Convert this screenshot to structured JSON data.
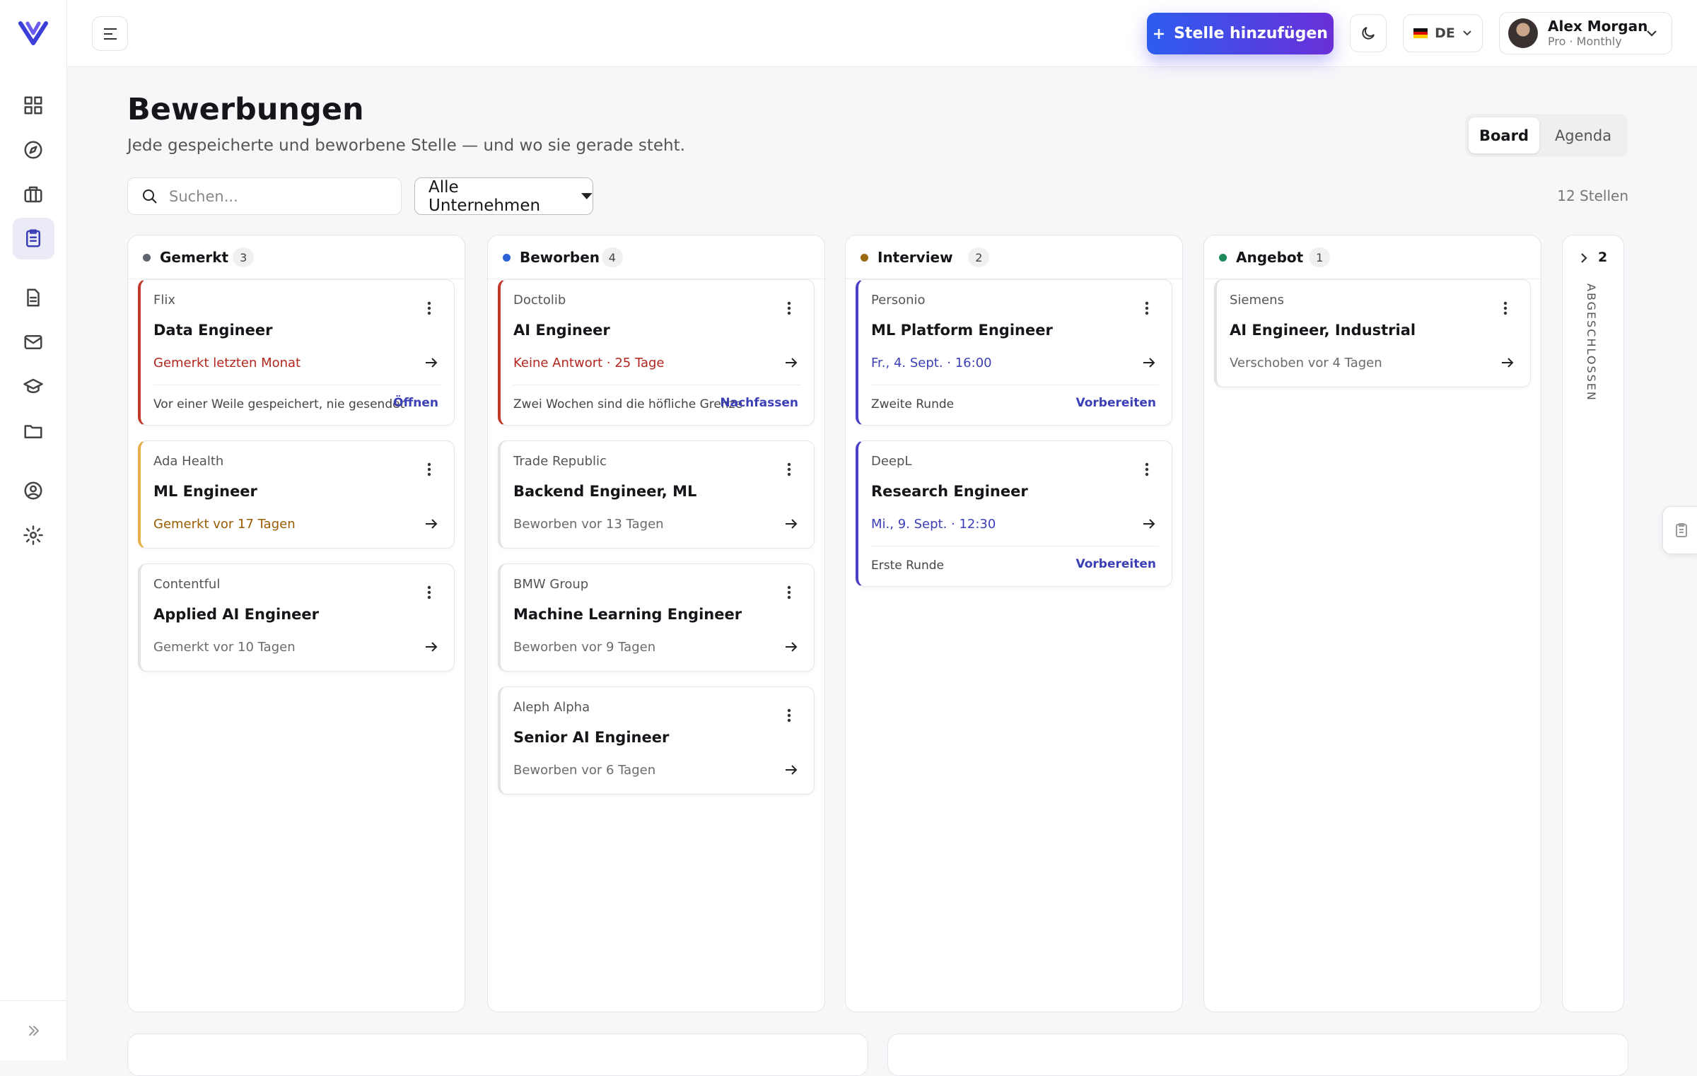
{
  "header": {
    "add_button": "Stelle hinzufügen",
    "language": "DE",
    "user_name": "Alex Morgan",
    "user_plan": "Pro · Monthly"
  },
  "page": {
    "title": "Bewerbungen",
    "subtitle": "Jede gespeicherte und beworbene Stelle — und wo sie gerade steht.",
    "views": [
      "Board",
      "Agenda"
    ],
    "search_placeholder": "Suchen...",
    "filter": "Alle Unternehmen",
    "total": "12 Stellen"
  },
  "columns": [
    {
      "name": "Gemerkt",
      "count": "3",
      "color": "#5f6470",
      "cards": [
        {
          "company": "Flix",
          "title": "Data Engineer",
          "status": "Gemerkt letzten Monat",
          "status_color": "#b3261e",
          "accent": "#c0392b",
          "footer": "Vor einer Weile gespeichert, nie gesendet",
          "action": "Öffnen"
        },
        {
          "company": "Ada Health",
          "title": "ML Engineer",
          "status": "Gemerkt vor 17 Tagen",
          "status_color": "#9a5b00",
          "accent": "#e5b04c"
        },
        {
          "company": "Contentful",
          "title": "Applied AI Engineer",
          "status": "Gemerkt vor 10 Tagen",
          "status_color": "#6b6b6b",
          "accent": "#e3e3e6"
        }
      ]
    },
    {
      "name": "Beworben",
      "count": "4",
      "color": "#2d63d8",
      "cards": [
        {
          "company": "Doctolib",
          "title": "AI Engineer",
          "status": "Keine Antwort · 25 Tage",
          "status_color": "#b3261e",
          "accent": "#c0392b",
          "footer": "Zwei Wochen sind die höfliche Grenze",
          "action": "Nachfassen"
        },
        {
          "company": "Trade Republic",
          "title": "Backend Engineer, ML",
          "status": "Beworben vor 13 Tagen",
          "status_color": "#6b6b6b",
          "accent": "#e3e3e6"
        },
        {
          "company": "BMW Group",
          "title": "Machine Learning Engineer",
          "status": "Beworben vor 9 Tagen",
          "status_color": "#6b6b6b",
          "accent": "#e3e3e6"
        },
        {
          "company": "Aleph Alpha",
          "title": "Senior AI Engineer",
          "status": "Beworben vor 6 Tagen",
          "status_color": "#6b6b6b",
          "accent": "#e3e3e6"
        }
      ]
    },
    {
      "name": "Interview",
      "count": "2",
      "color": "#9a6a12",
      "cards": [
        {
          "company": "Personio",
          "title": "ML Platform Engineer",
          "status": "Fr., 4. Sept. · 16:00",
          "status_color": "#3b3fb5",
          "accent": "#4a3fc7",
          "footer": "Zweite Runde",
          "action": "Vorbereiten"
        },
        {
          "company": "DeepL",
          "title": "Research Engineer",
          "status": "Mi., 9. Sept. · 12:30",
          "status_color": "#3b3fb5",
          "accent": "#4a3fc7",
          "footer": "Erste Runde",
          "action": "Vorbereiten"
        }
      ]
    },
    {
      "name": "Angebot",
      "count": "1",
      "color": "#1c8a5a",
      "cards": [
        {
          "company": "Siemens",
          "title": "AI Engineer, Industrial",
          "status": "Verschoben vor 4 Tagen",
          "status_color": "#6b6b6b",
          "accent": "#e3e3e6"
        }
      ]
    }
  ],
  "collapsed_column": {
    "name": "ABGESCHLOSSEN",
    "count": "2"
  }
}
